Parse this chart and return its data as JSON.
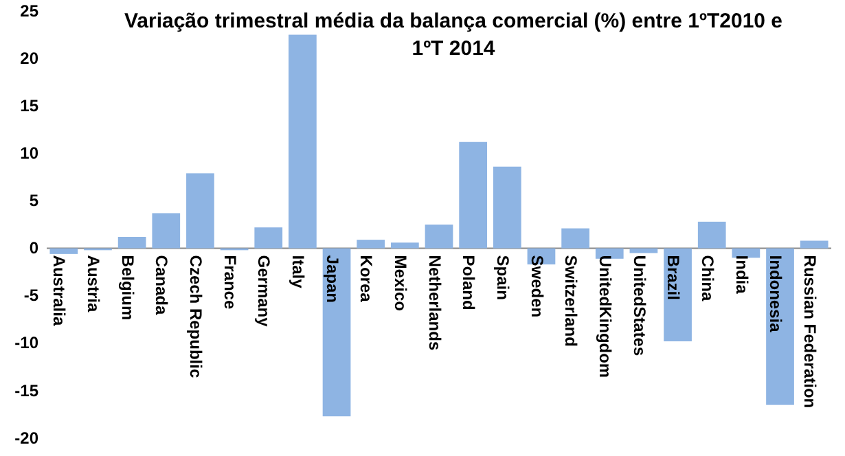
{
  "chart_data": {
    "type": "bar",
    "title": "Variação trimestral média da balança comercial (%) entre 1ºT2010 e 1ºT 2014",
    "categories": [
      "Australia",
      "Austria",
      "Belgium",
      "Canada",
      "Czech Republic",
      "France",
      "Germany",
      "Italy",
      "Japan",
      "Korea",
      "Mexico",
      "Netherlands",
      "Poland",
      "Spain",
      "Sweden",
      "Switzerland",
      "UnitedKingdom",
      "UnitedStates",
      "Brazil",
      "China",
      "India",
      "Indonesia",
      "Russian Federation"
    ],
    "values": [
      -0.6,
      -0.2,
      1.2,
      3.7,
      7.9,
      -0.2,
      2.2,
      22.5,
      -17.7,
      0.9,
      0.6,
      2.5,
      11.2,
      8.6,
      -1.7,
      2.1,
      -1.1,
      -0.5,
      -9.8,
      2.8,
      -1.0,
      -16.5,
      0.8
    ],
    "color": "#8eb4e3",
    "ylim": [
      -20,
      25
    ],
    "yticks": [
      -20,
      -15,
      -10,
      -5,
      0,
      5,
      10,
      15,
      20,
      25
    ]
  }
}
